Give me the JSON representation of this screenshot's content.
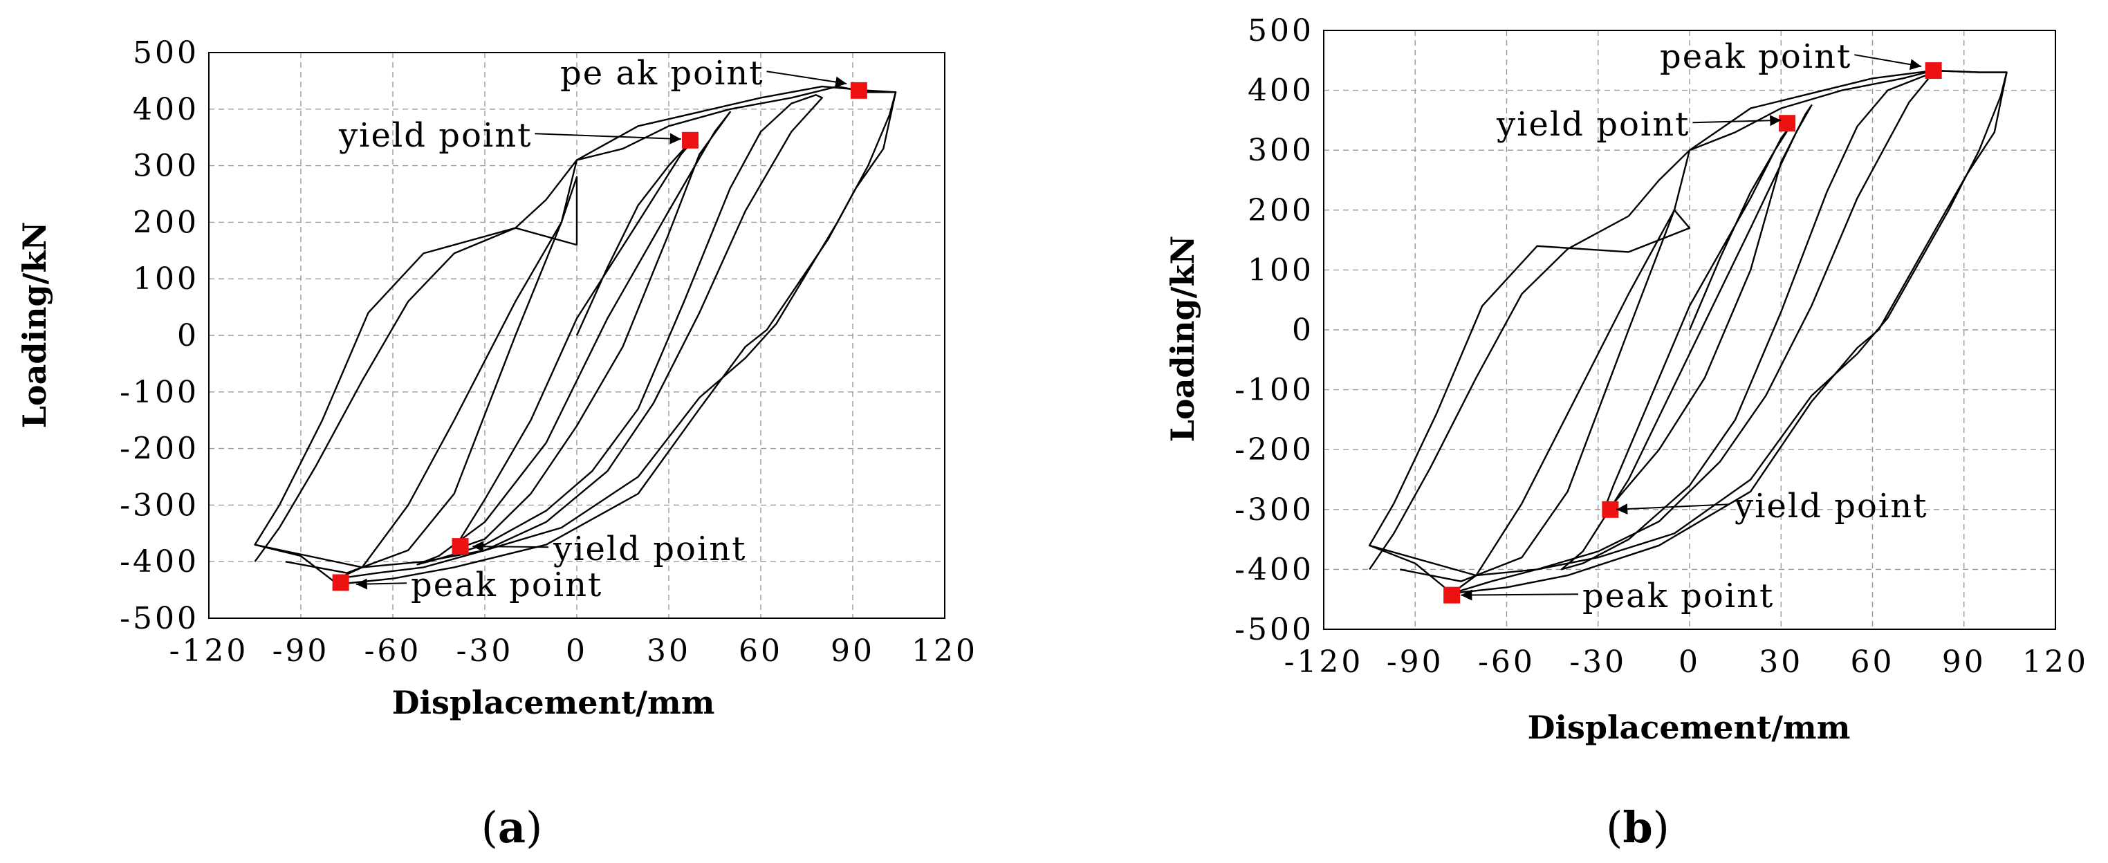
{
  "figure": {
    "panel_labels": [
      {
        "open": "(",
        "letter": "a",
        "close": ")"
      },
      {
        "open": "(",
        "letter": "b",
        "close": ")"
      }
    ]
  },
  "chart_data": [
    {
      "type": "line",
      "panel": "a",
      "title": "",
      "xlabel": "Displacement/mm",
      "ylabel": "Loading/kN",
      "xlim": [
        -120,
        120
      ],
      "ylim": [
        -500,
        500
      ],
      "xticks": [
        -120,
        -90,
        -60,
        -30,
        0,
        30,
        60,
        90,
        120
      ],
      "yticks": [
        -500,
        -400,
        -300,
        -200,
        -100,
        0,
        100,
        200,
        300,
        400,
        500
      ],
      "xtick_labels": [
        "-120",
        "-90",
        "-60",
        "-30",
        "0",
        "30",
        "60",
        "90",
        "120"
      ],
      "ytick_labels": [
        "-500",
        "-400",
        "-300",
        "-200",
        "-100",
        "0",
        "100",
        "200",
        "300",
        "400",
        "500"
      ],
      "grid": true,
      "series": [
        {
          "name": "hysteresis",
          "points": [
            [
              0,
              0
            ],
            [
              10,
              120
            ],
            [
              20,
              230
            ],
            [
              30,
              300
            ],
            [
              35,
              330
            ],
            [
              38,
              345
            ],
            [
              34,
              320
            ],
            [
              20,
              200
            ],
            [
              0,
              30
            ],
            [
              -15,
              -150
            ],
            [
              -30,
              -290
            ],
            [
              -38,
              -360
            ],
            [
              -38,
              -375
            ],
            [
              -30,
              -360
            ],
            [
              -15,
              -280
            ],
            [
              0,
              -160
            ],
            [
              15,
              -20
            ],
            [
              30,
              180
            ],
            [
              40,
              320
            ],
            [
              48,
              380
            ],
            [
              50,
              395
            ],
            [
              45,
              360
            ],
            [
              30,
              220
            ],
            [
              10,
              30
            ],
            [
              -10,
              -190
            ],
            [
              -30,
              -330
            ],
            [
              -45,
              -390
            ],
            [
              -52,
              -405
            ],
            [
              -45,
              -395
            ],
            [
              -30,
              -370
            ],
            [
              -10,
              -310
            ],
            [
              5,
              -240
            ],
            [
              20,
              -130
            ],
            [
              35,
              60
            ],
            [
              50,
              260
            ],
            [
              60,
              360
            ],
            [
              70,
              410
            ],
            [
              78,
              425
            ],
            [
              80,
              420
            ],
            [
              70,
              360
            ],
            [
              55,
              220
            ],
            [
              40,
              40
            ],
            [
              25,
              -120
            ],
            [
              10,
              -240
            ],
            [
              -10,
              -330
            ],
            [
              -30,
              -380
            ],
            [
              -50,
              -410
            ],
            [
              -65,
              -420
            ],
            [
              -78,
              -430
            ],
            [
              -70,
              -410
            ],
            [
              -55,
              -300
            ],
            [
              -40,
              -150
            ],
            [
              -20,
              60
            ],
            [
              -5,
              200
            ],
            [
              0,
              280
            ],
            [
              0,
              160
            ],
            [
              -20,
              190
            ],
            [
              -50,
              145
            ],
            [
              -68,
              40
            ],
            [
              -83,
              -150
            ],
            [
              -97,
              -300
            ],
            [
              -105,
              -370
            ],
            [
              -90,
              -390
            ],
            [
              -78,
              -440
            ],
            [
              -60,
              -430
            ],
            [
              -40,
              -410
            ],
            [
              -10,
              -370
            ],
            [
              20,
              -280
            ],
            [
              40,
              -130
            ],
            [
              55,
              -20
            ],
            [
              62,
              10
            ],
            [
              72,
              90
            ],
            [
              82,
              170
            ],
            [
              91,
              260
            ],
            [
              100,
              330
            ],
            [
              104,
              430
            ],
            [
              95,
              430
            ],
            [
              85,
              440
            ],
            [
              70,
              420
            ],
            [
              50,
              400
            ],
            [
              30,
              370
            ],
            [
              15,
              330
            ],
            [
              0,
              310
            ],
            [
              -5,
              200
            ],
            [
              -20,
              0
            ],
            [
              -40,
              -280
            ],
            [
              -55,
              -380
            ],
            [
              -75,
              -420
            ],
            [
              -95,
              -400
            ]
          ]
        },
        {
          "name": "outer-envelope",
          "points": [
            [
              -105,
              -370
            ],
            [
              -70,
              -410
            ],
            [
              -50,
              -400
            ],
            [
              -30,
              -380
            ],
            [
              -5,
              -340
            ],
            [
              20,
              -250
            ],
            [
              40,
              -110
            ],
            [
              55,
              -40
            ],
            [
              65,
              20
            ],
            [
              75,
              110
            ],
            [
              85,
              200
            ],
            [
              95,
              300
            ],
            [
              102,
              390
            ],
            [
              104,
              430
            ],
            [
              95,
              433
            ],
            [
              80,
              440
            ],
            [
              60,
              420
            ],
            [
              40,
              395
            ],
            [
              20,
              370
            ],
            [
              0,
              310
            ],
            [
              -10,
              240
            ],
            [
              -20,
              190
            ],
            [
              -40,
              145
            ],
            [
              -55,
              60
            ],
            [
              -70,
              -80
            ],
            [
              -85,
              -230
            ],
            [
              -97,
              -340
            ],
            [
              -105,
              -400
            ]
          ]
        }
      ],
      "markers": [
        {
          "name": "peak-point-positive",
          "x": 92,
          "y": 433
        },
        {
          "name": "yield-point-positive",
          "x": 37,
          "y": 345
        },
        {
          "name": "yield-point-negative",
          "x": -38,
          "y": -373
        },
        {
          "name": "peak-point-negative",
          "x": -77,
          "y": -437
        }
      ],
      "annotations": [
        {
          "text": "pe ak point",
          "target": [
            88,
            445
          ]
        },
        {
          "text": "yield point",
          "target": [
            34,
            347
          ]
        },
        {
          "text": "yield point",
          "target": [
            -34,
            -373
          ]
        },
        {
          "text": "peak point",
          "target": [
            -72,
            -440
          ]
        }
      ],
      "marker_color": "#ee1111"
    },
    {
      "type": "line",
      "panel": "b",
      "title": "",
      "xlabel": "Displacement/mm",
      "ylabel": "Loading/kN",
      "xlim": [
        -120,
        120
      ],
      "ylim": [
        -500,
        500
      ],
      "xticks": [
        -120,
        -90,
        -60,
        -30,
        0,
        30,
        60,
        90,
        120
      ],
      "yticks": [
        -500,
        -400,
        -300,
        -200,
        -100,
        0,
        100,
        200,
        300,
        400,
        500
      ],
      "xtick_labels": [
        "-120",
        "-90",
        "-60",
        "-30",
        "0",
        "30",
        "60",
        "90",
        "120"
      ],
      "ytick_labels": [
        "-500",
        "-400",
        "-300",
        "-200",
        "-100",
        "0",
        "100",
        "200",
        "300",
        "400",
        "500"
      ],
      "grid": true,
      "series": [
        {
          "name": "hysteresis",
          "points": [
            [
              0,
              0
            ],
            [
              10,
              120
            ],
            [
              20,
              230
            ],
            [
              28,
              300
            ],
            [
              33,
              340
            ],
            [
              30,
              320
            ],
            [
              20,
              220
            ],
            [
              0,
              40
            ],
            [
              -15,
              -140
            ],
            [
              -25,
              -260
            ],
            [
              -28,
              -300
            ],
            [
              -25,
              -290
            ],
            [
              -10,
              -200
            ],
            [
              5,
              -80
            ],
            [
              20,
              100
            ],
            [
              30,
              280
            ],
            [
              38,
              360
            ],
            [
              40,
              375
            ],
            [
              35,
              330
            ],
            [
              20,
              170
            ],
            [
              0,
              -40
            ],
            [
              -20,
              -250
            ],
            [
              -35,
              -370
            ],
            [
              -42,
              -400
            ],
            [
              -35,
              -390
            ],
            [
              -20,
              -350
            ],
            [
              0,
              -260
            ],
            [
              15,
              -150
            ],
            [
              30,
              30
            ],
            [
              45,
              230
            ],
            [
              55,
              340
            ],
            [
              65,
              400
            ],
            [
              75,
              420
            ],
            [
              80,
              430
            ],
            [
              72,
              380
            ],
            [
              55,
              220
            ],
            [
              40,
              40
            ],
            [
              25,
              -110
            ],
            [
              10,
              -220
            ],
            [
              -10,
              -320
            ],
            [
              -30,
              -370
            ],
            [
              -50,
              -400
            ],
            [
              -65,
              -420
            ],
            [
              -78,
              -440
            ],
            [
              -70,
              -410
            ],
            [
              -55,
              -290
            ],
            [
              -40,
              -140
            ],
            [
              -20,
              60
            ],
            [
              -5,
              200
            ],
            [
              0,
              170
            ],
            [
              -20,
              130
            ],
            [
              -50,
              140
            ],
            [
              -68,
              40
            ],
            [
              -83,
              -140
            ],
            [
              -97,
              -290
            ],
            [
              -105,
              -360
            ],
            [
              -90,
              -390
            ],
            [
              -78,
              -440
            ],
            [
              -60,
              -430
            ],
            [
              -40,
              -410
            ],
            [
              -10,
              -360
            ],
            [
              20,
              -270
            ],
            [
              40,
              -120
            ],
            [
              55,
              -30
            ],
            [
              62,
              0
            ],
            [
              72,
              90
            ],
            [
              82,
              180
            ],
            [
              91,
              260
            ],
            [
              100,
              330
            ],
            [
              104,
              430
            ],
            [
              95,
              430
            ],
            [
              80,
              433
            ],
            [
              70,
              420
            ],
            [
              50,
              400
            ],
            [
              30,
              370
            ],
            [
              15,
              330
            ],
            [
              0,
              300
            ],
            [
              -5,
              200
            ],
            [
              -20,
              0
            ],
            [
              -40,
              -270
            ],
            [
              -55,
              -380
            ],
            [
              -75,
              -420
            ],
            [
              -95,
              -400
            ]
          ]
        },
        {
          "name": "outer-envelope",
          "points": [
            [
              -105,
              -360
            ],
            [
              -70,
              -410
            ],
            [
              -50,
              -400
            ],
            [
              -30,
              -380
            ],
            [
              -5,
              -340
            ],
            [
              20,
              -250
            ],
            [
              40,
              -110
            ],
            [
              55,
              -40
            ],
            [
              65,
              20
            ],
            [
              75,
              110
            ],
            [
              85,
              200
            ],
            [
              95,
              300
            ],
            [
              102,
              390
            ],
            [
              104,
              430
            ],
            [
              95,
              430
            ],
            [
              80,
              433
            ],
            [
              60,
              420
            ],
            [
              40,
              395
            ],
            [
              20,
              370
            ],
            [
              0,
              300
            ],
            [
              -10,
              250
            ],
            [
              -20,
              190
            ],
            [
              -40,
              135
            ],
            [
              -55,
              60
            ],
            [
              -70,
              -80
            ],
            [
              -85,
              -230
            ],
            [
              -97,
              -340
            ],
            [
              -105,
              -400
            ]
          ]
        }
      ],
      "markers": [
        {
          "name": "peak-point-positive",
          "x": 80,
          "y": 433
        },
        {
          "name": "yield-point-positive",
          "x": 32,
          "y": 345
        },
        {
          "name": "yield-point-negative",
          "x": -26,
          "y": -300
        },
        {
          "name": "peak-point-negative",
          "x": -78,
          "y": -443
        }
      ],
      "annotations": [
        {
          "text": "peak point",
          "target": [
            76,
            440
          ]
        },
        {
          "text": "yield point",
          "target": [
            30,
            350
          ]
        },
        {
          "text": "yield point",
          "target": [
            -24,
            -300
          ]
        },
        {
          "text": "peak point",
          "target": [
            -75,
            -443
          ]
        }
      ],
      "marker_color": "#ee1111"
    }
  ]
}
